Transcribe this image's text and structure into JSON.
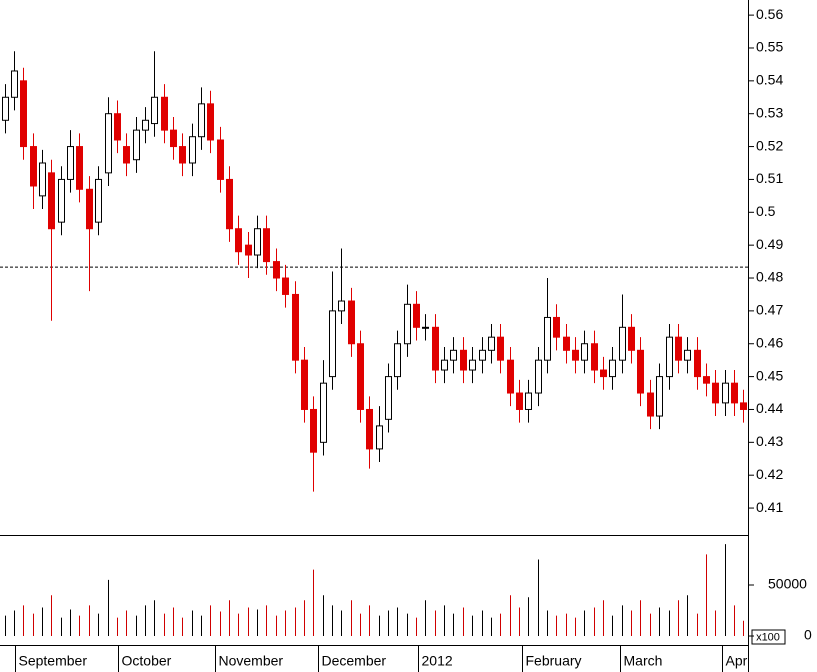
{
  "chart_data": [
    {
      "type": "candlestick",
      "open": [
        0.528,
        0.535,
        0.54,
        0.52,
        0.505,
        0.512,
        0.497,
        0.51,
        0.52,
        0.507,
        0.497,
        0.512,
        0.53,
        0.52,
        0.516,
        0.525,
        0.527,
        0.535,
        0.525,
        0.52,
        0.515,
        0.523,
        0.533,
        0.522,
        0.51,
        0.495,
        0.49,
        0.487,
        0.495,
        0.485,
        0.48,
        0.475,
        0.455,
        0.44,
        0.43,
        0.45,
        0.47,
        0.473,
        0.46,
        0.44,
        0.428,
        0.437,
        0.45,
        0.46,
        0.472,
        0.465,
        0.465,
        0.452,
        0.455,
        0.458,
        0.452,
        0.455,
        0.458,
        0.462,
        0.455,
        0.445,
        0.44,
        0.445,
        0.455,
        0.468,
        0.462,
        0.458,
        0.455,
        0.46,
        0.452,
        0.45,
        0.455,
        0.465,
        0.458,
        0.445,
        0.438,
        0.45,
        0.462,
        0.455,
        0.458,
        0.45,
        0.448,
        0.442,
        0.448,
        0.442
      ],
      "high": [
        0.539,
        0.549,
        0.544,
        0.524,
        0.519,
        0.516,
        0.514,
        0.525,
        0.524,
        0.511,
        0.514,
        0.535,
        0.534,
        0.524,
        0.529,
        0.532,
        0.549,
        0.539,
        0.529,
        0.524,
        0.527,
        0.538,
        0.537,
        0.526,
        0.514,
        0.499,
        0.494,
        0.499,
        0.499,
        0.489,
        0.484,
        0.479,
        0.459,
        0.444,
        0.455,
        0.482,
        0.489,
        0.477,
        0.464,
        0.444,
        0.441,
        0.454,
        0.464,
        0.478,
        0.476,
        0.469,
        0.469,
        0.459,
        0.462,
        0.462,
        0.459,
        0.462,
        0.466,
        0.466,
        0.459,
        0.449,
        0.449,
        0.459,
        0.48,
        0.472,
        0.466,
        0.462,
        0.464,
        0.464,
        0.456,
        0.459,
        0.475,
        0.469,
        0.462,
        0.449,
        0.454,
        0.466,
        0.466,
        0.462,
        0.462,
        0.454,
        0.452,
        0.452,
        0.452,
        0.446
      ],
      "low": [
        0.524,
        0.531,
        0.516,
        0.501,
        0.501,
        0.467,
        0.493,
        0.506,
        0.503,
        0.476,
        0.493,
        0.508,
        0.518,
        0.511,
        0.512,
        0.521,
        0.523,
        0.521,
        0.516,
        0.511,
        0.511,
        0.519,
        0.518,
        0.506,
        0.491,
        0.484,
        0.48,
        0.483,
        0.481,
        0.476,
        0.471,
        0.451,
        0.436,
        0.415,
        0.426,
        0.446,
        0.466,
        0.456,
        0.436,
        0.422,
        0.424,
        0.433,
        0.446,
        0.456,
        0.461,
        0.461,
        0.448,
        0.448,
        0.451,
        0.448,
        0.448,
        0.451,
        0.454,
        0.451,
        0.441,
        0.436,
        0.436,
        0.441,
        0.451,
        0.458,
        0.454,
        0.451,
        0.451,
        0.448,
        0.446,
        0.446,
        0.451,
        0.454,
        0.441,
        0.434,
        0.434,
        0.446,
        0.451,
        0.451,
        0.446,
        0.444,
        0.438,
        0.438,
        0.438,
        0.436
      ],
      "close": [
        0.535,
        0.543,
        0.52,
        0.508,
        0.515,
        0.495,
        0.51,
        0.52,
        0.507,
        0.495,
        0.51,
        0.53,
        0.522,
        0.515,
        0.525,
        0.528,
        0.535,
        0.525,
        0.52,
        0.515,
        0.523,
        0.533,
        0.522,
        0.51,
        0.495,
        0.488,
        0.487,
        0.495,
        0.485,
        0.48,
        0.475,
        0.455,
        0.44,
        0.427,
        0.448,
        0.47,
        0.473,
        0.46,
        0.44,
        0.428,
        0.435,
        0.45,
        0.46,
        0.472,
        0.465,
        0.465,
        0.452,
        0.455,
        0.458,
        0.452,
        0.455,
        0.458,
        0.462,
        0.455,
        0.445,
        0.44,
        0.445,
        0.455,
        0.468,
        0.462,
        0.458,
        0.455,
        0.46,
        0.452,
        0.45,
        0.455,
        0.465,
        0.458,
        0.445,
        0.438,
        0.45,
        0.462,
        0.455,
        0.458,
        0.45,
        0.448,
        0.442,
        0.448,
        0.442,
        0.44
      ],
      "xlim": [
        -0.5,
        79.5
      ],
      "xticks": [
        {
          "value": 1.1,
          "label": "September"
        },
        {
          "value": 12.1,
          "label": "October"
        },
        {
          "value": 22.5,
          "label": "November"
        },
        {
          "value": 33.5,
          "label": "December"
        },
        {
          "value": 44.2,
          "label": "2012"
        },
        {
          "value": 55.3,
          "label": "February"
        },
        {
          "value": 65.8,
          "label": "March"
        },
        {
          "value": 76.7,
          "label": "Apr"
        }
      ],
      "ylim": [
        0.4018,
        0.5646
      ],
      "yticks": [
        0.41,
        0.42,
        0.43,
        0.44,
        0.45,
        0.46,
        0.47,
        0.48,
        0.49,
        0.5,
        0.51,
        0.52,
        0.53,
        0.54,
        0.55,
        0.56
      ],
      "reference_line": 0.4833,
      "up_color": "#ffffff",
      "down_color": "#e00000"
    },
    {
      "type": "bar",
      "values": [
        20000,
        25000,
        30000,
        22000,
        28000,
        40000,
        18000,
        26000,
        20000,
        30000,
        22000,
        55000,
        18000,
        25000,
        20000,
        30000,
        35000,
        22000,
        28000,
        18000,
        25000,
        20000,
        30000,
        24000,
        35000,
        22000,
        28000,
        26000,
        30000,
        20000,
        25000,
        28000,
        35000,
        65000,
        40000,
        30000,
        25000,
        35000,
        22000,
        30000,
        20000,
        25000,
        28000,
        22000,
        18000,
        35000,
        25000,
        30000,
        22000,
        28000,
        20000,
        25000,
        18000,
        22000,
        40000,
        28000,
        38000,
        75000,
        25000,
        20000,
        22000,
        18000,
        25000,
        28000,
        35000,
        20000,
        30000,
        25000,
        35000,
        22000,
        28000,
        25000,
        35000,
        40000,
        22000,
        80000,
        25000,
        90000,
        30000,
        15000
      ],
      "ylim": [
        -8800,
        98000
      ],
      "yticks": [
        0,
        50000
      ],
      "unit_label": "x100",
      "color": "#d00000"
    }
  ]
}
